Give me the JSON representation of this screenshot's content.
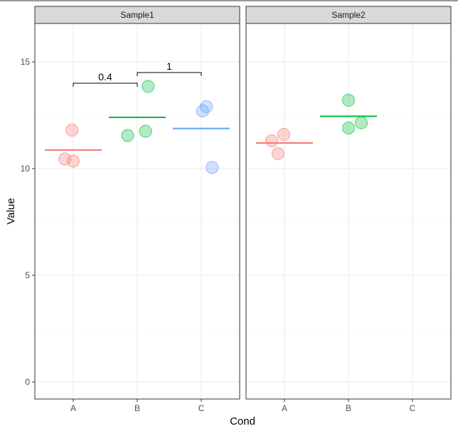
{
  "chart_data": {
    "type": "scatter",
    "title": "",
    "xlabel": "Cond",
    "ylabel": "Value",
    "ylim": [
      -0.8,
      16.8
    ],
    "yticks": [
      0,
      5,
      10,
      15
    ],
    "categories": [
      "A",
      "B",
      "C"
    ],
    "grid": true,
    "colors": {
      "A": "#F8766D",
      "B": "#00BA38",
      "C": "#619CFF"
    },
    "panels": [
      {
        "label": "Sample1",
        "points": [
          {
            "cond": "A",
            "x": -0.02,
            "y": 11.8
          },
          {
            "cond": "A",
            "x": -0.13,
            "y": 10.45
          },
          {
            "cond": "A",
            "x": 0.0,
            "y": 10.35
          },
          {
            "cond": "B",
            "x": 0.17,
            "y": 13.85
          },
          {
            "cond": "B",
            "x": 0.13,
            "y": 11.75
          },
          {
            "cond": "B",
            "x": -0.15,
            "y": 11.55
          },
          {
            "cond": "C",
            "x": 0.08,
            "y": 12.9
          },
          {
            "cond": "C",
            "x": 0.02,
            "y": 12.7
          },
          {
            "cond": "C",
            "x": 0.17,
            "y": 10.05
          }
        ],
        "means": [
          {
            "cond": "A",
            "y": 10.87
          },
          {
            "cond": "B",
            "y": 12.4
          },
          {
            "cond": "C",
            "y": 11.88
          }
        ],
        "comparisons": [
          {
            "from": "A",
            "to": "B",
            "y": 14.0,
            "label": "0.4"
          },
          {
            "from": "B",
            "to": "C",
            "y": 14.5,
            "label": "1"
          }
        ]
      },
      {
        "label": "Sample2",
        "points": [
          {
            "cond": "A",
            "x": -0.2,
            "y": 11.3
          },
          {
            "cond": "A",
            "x": -0.01,
            "y": 11.6
          },
          {
            "cond": "A",
            "x": -0.1,
            "y": 10.7
          },
          {
            "cond": "B",
            "x": 0.0,
            "y": 13.2
          },
          {
            "cond": "B",
            "x": 0.0,
            "y": 11.9
          },
          {
            "cond": "B",
            "x": 0.2,
            "y": 12.15
          }
        ],
        "means": [
          {
            "cond": "A",
            "y": 11.2
          },
          {
            "cond": "B",
            "y": 12.45
          }
        ],
        "comparisons": []
      }
    ]
  }
}
